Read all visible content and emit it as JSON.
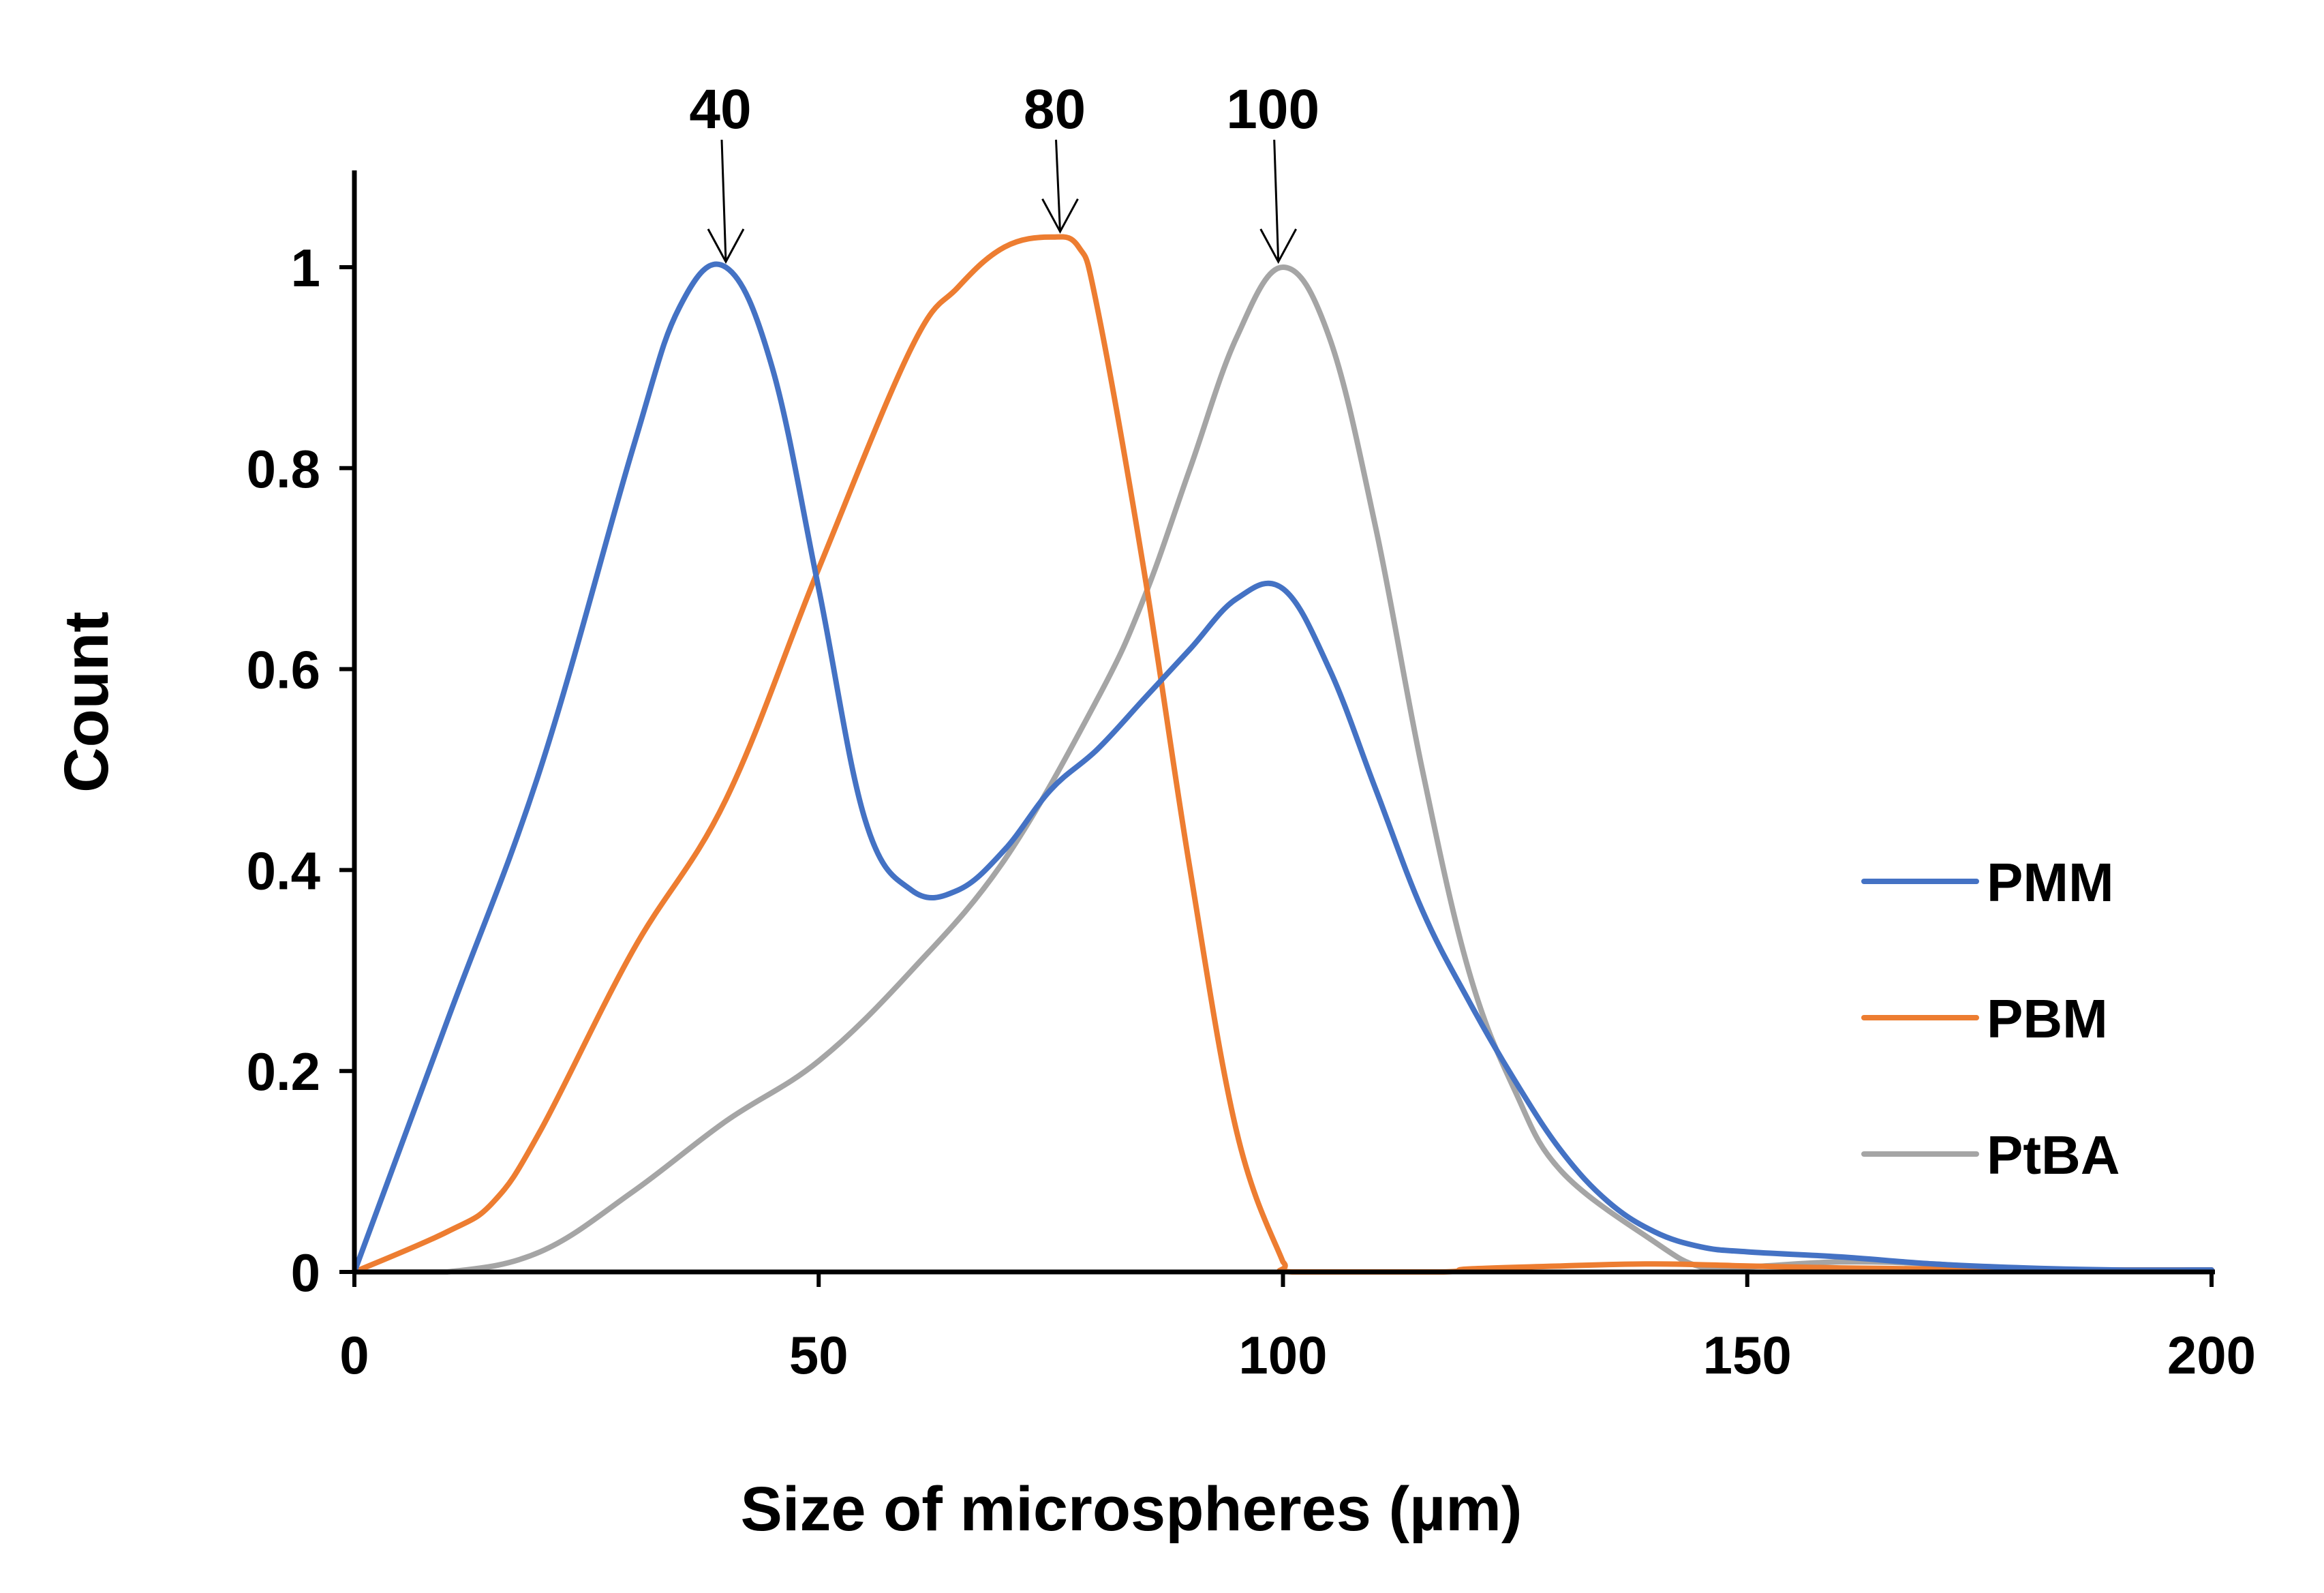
{
  "chart_data": {
    "type": "line",
    "title": "",
    "xlabel": "Size of microspheres (µm)",
    "ylabel": "Count",
    "xlim": [
      0,
      200
    ],
    "ylim": [
      0,
      1.1
    ],
    "x_ticks": [
      0,
      50,
      100,
      150,
      200
    ],
    "x_tick_labels": [
      "0",
      "50",
      "100",
      "150",
      "200"
    ],
    "y_ticks": [
      0,
      0.2,
      0.4,
      0.6,
      0.8,
      1
    ],
    "y_tick_labels": [
      "0",
      "0.2",
      "0.4",
      "0.6",
      "0.8",
      "1"
    ],
    "grid": false,
    "legend_position": "right",
    "series": [
      {
        "name": "PMM",
        "color": "#4472C4",
        "x": [
          0,
          10,
          20,
          30,
          35,
          40,
          45,
          50,
          55,
          60,
          65,
          70,
          75,
          80,
          85,
          90,
          95,
          100,
          105,
          110,
          115,
          120,
          125,
          130,
          135,
          140,
          145,
          150,
          160,
          170,
          180,
          190,
          200
        ],
        "y": [
          0,
          0.25,
          0.5,
          0.82,
          0.96,
          1.0,
          0.9,
          0.68,
          0.45,
          0.38,
          0.38,
          0.42,
          0.48,
          0.52,
          0.57,
          0.62,
          0.67,
          0.68,
          0.6,
          0.48,
          0.36,
          0.27,
          0.19,
          0.12,
          0.07,
          0.04,
          0.025,
          0.02,
          0.015,
          0.008,
          0.004,
          0.002,
          0.002
        ]
      },
      {
        "name": "PBM",
        "color": "#ED7D31",
        "x": [
          0,
          10,
          15,
          20,
          30,
          40,
          50,
          60,
          65,
          70,
          75,
          78,
          80,
          85,
          90,
          95,
          100,
          101,
          117,
          120,
          130,
          140,
          150,
          160,
          170,
          180,
          190,
          200
        ],
        "y": [
          0,
          0.04,
          0.07,
          0.14,
          0.32,
          0.47,
          0.7,
          0.92,
          0.98,
          1.02,
          1.03,
          1.02,
          0.96,
          0.7,
          0.4,
          0.14,
          0.01,
          0.0,
          0.0,
          0.003,
          0.006,
          0.008,
          0.006,
          0.004,
          0.003,
          0.002,
          0.002,
          0.002
        ]
      },
      {
        "name": "PtBA",
        "color": "#A5A5A5",
        "x": [
          0,
          10,
          20,
          30,
          40,
          50,
          60,
          70,
          80,
          85,
          90,
          95,
          100,
          105,
          110,
          115,
          120,
          125,
          130,
          140,
          145,
          150,
          160,
          170,
          180,
          190,
          200
        ],
        "y": [
          0,
          0.0,
          0.02,
          0.08,
          0.15,
          0.21,
          0.3,
          0.41,
          0.57,
          0.67,
          0.8,
          0.93,
          1.0,
          0.93,
          0.74,
          0.5,
          0.3,
          0.18,
          0.1,
          0.03,
          0.005,
          0.005,
          0.01,
          0.008,
          0.002,
          0.002,
          0.002
        ]
      }
    ],
    "annotations": [
      {
        "label": "40",
        "x": 40,
        "y": 1.0
      },
      {
        "label": "80",
        "x": 76,
        "y": 1.03
      },
      {
        "label": "100",
        "x": 99.5,
        "y": 1.0
      }
    ]
  }
}
